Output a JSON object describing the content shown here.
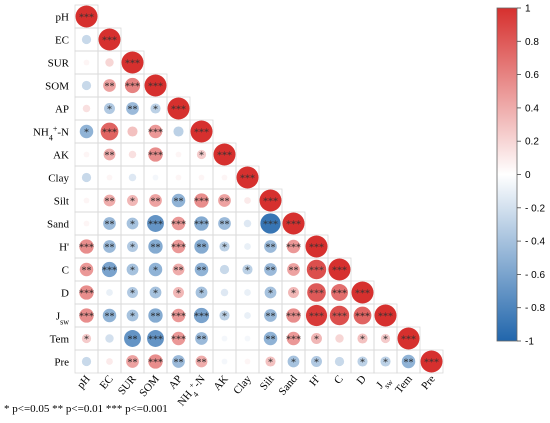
{
  "chart_data": {
    "type": "heatmap",
    "variables": [
      "pH",
      "EC",
      "SUR",
      "SOM",
      "AP",
      "NH4+-N",
      "AK",
      "Clay",
      "Silt",
      "Sand",
      "H'",
      "C",
      "D",
      "Jsw",
      "Tem",
      "Pre"
    ],
    "row_labels": [
      {
        "base": "pH",
        "sup": "",
        "sub": ""
      },
      {
        "base": "EC",
        "sup": "",
        "sub": ""
      },
      {
        "base": "SUR",
        "sup": "",
        "sub": ""
      },
      {
        "base": "SOM",
        "sup": "",
        "sub": ""
      },
      {
        "base": "AP",
        "sup": "",
        "sub": ""
      },
      {
        "base": "NH",
        "sub": "4",
        "sup": "+",
        "tail": "-N"
      },
      {
        "base": "AK",
        "sup": "",
        "sub": ""
      },
      {
        "base": "Clay",
        "sup": "",
        "sub": ""
      },
      {
        "base": "Silt",
        "sup": "",
        "sub": ""
      },
      {
        "base": "Sand",
        "sup": "",
        "sub": ""
      },
      {
        "base": "H'",
        "sup": "",
        "sub": ""
      },
      {
        "base": "C",
        "sup": "",
        "sub": ""
      },
      {
        "base": "D",
        "sup": "",
        "sub": ""
      },
      {
        "base": "J",
        "sub": "sw",
        "sup": ""
      },
      {
        "base": "Tem",
        "sup": "",
        "sub": ""
      },
      {
        "base": "Pre",
        "sup": "",
        "sub": ""
      }
    ],
    "matrix": [
      [
        1.0
      ],
      [
        -0.25,
        1.0
      ],
      [
        0.05,
        0.2,
        1.0
      ],
      [
        -0.25,
        0.45,
        0.6,
        1.0
      ],
      [
        0.15,
        -0.35,
        -0.45,
        -0.3,
        1.0
      ],
      [
        -0.5,
        0.75,
        0.3,
        0.5,
        -0.3,
        1.0
      ],
      [
        0.05,
        0.4,
        0.15,
        0.55,
        0.05,
        0.25,
        1.0
      ],
      [
        -0.25,
        0.05,
        -0.15,
        -0.05,
        0.05,
        0.05,
        0.05,
        1.0
      ],
      [
        0.05,
        0.4,
        0.35,
        0.45,
        -0.5,
        0.55,
        0.45,
        0.1,
        1.0
      ],
      [
        0.05,
        -0.45,
        -0.4,
        -0.7,
        0.5,
        -0.55,
        -0.45,
        -0.15,
        -0.9,
        1.0
      ],
      [
        0.55,
        -0.45,
        -0.35,
        -0.55,
        0.5,
        -0.55,
        -0.3,
        -0.1,
        -0.45,
        0.5,
        1.0
      ],
      [
        0.5,
        -0.6,
        -0.4,
        -0.5,
        0.4,
        -0.5,
        -0.25,
        -0.3,
        -0.45,
        0.45,
        0.85,
        1.0
      ],
      [
        0.55,
        -0.1,
        -0.35,
        -0.4,
        0.35,
        -0.4,
        -0.15,
        -0.1,
        -0.4,
        0.35,
        0.8,
        0.7,
        1.0
      ],
      [
        0.55,
        -0.5,
        -0.4,
        -0.55,
        0.5,
        -0.6,
        -0.3,
        -0.1,
        -0.45,
        0.55,
        0.95,
        0.85,
        0.75,
        1.0
      ],
      [
        0.25,
        -0.2,
        -0.7,
        -0.7,
        0.5,
        -0.45,
        -0.05,
        -0.05,
        -0.5,
        0.5,
        0.35,
        0.2,
        0.3,
        0.25,
        1.0
      ],
      [
        -0.25,
        0.1,
        0.45,
        0.55,
        -0.45,
        0.4,
        -0.05,
        0.05,
        0.3,
        -0.4,
        -0.35,
        -0.25,
        -0.3,
        -0.3,
        -0.5,
        1.0
      ]
    ],
    "significance": [
      [
        "***"
      ],
      [
        "",
        "***"
      ],
      [
        "",
        "",
        "***"
      ],
      [
        "",
        "**",
        "***",
        "***"
      ],
      [
        "",
        "*",
        "**",
        "*",
        "***"
      ],
      [
        "*",
        "***",
        "",
        "***",
        "",
        "***"
      ],
      [
        "",
        "**",
        "",
        "***",
        "",
        "*",
        "***"
      ],
      [
        "",
        "",
        "",
        "",
        "",
        "",
        "",
        "***"
      ],
      [
        "",
        "**",
        "*",
        "**",
        "**",
        "***",
        "**",
        "",
        "***"
      ],
      [
        "",
        "**",
        "*",
        "***",
        "***",
        "***",
        "**",
        "",
        "***",
        "***"
      ],
      [
        "***",
        "**",
        "*",
        "**",
        "***",
        "**",
        "*",
        "",
        "**",
        "***",
        "***"
      ],
      [
        "**",
        "***",
        "*",
        "*",
        "**",
        "**",
        "",
        "*",
        "**",
        "**",
        "***",
        "***"
      ],
      [
        "***",
        "",
        "*",
        "*",
        "*",
        "*",
        "",
        "",
        "*",
        "*",
        "***",
        "***",
        "***"
      ],
      [
        "***",
        "**",
        "*",
        "**",
        "***",
        "***",
        "*",
        "",
        "**",
        "***",
        "***",
        "***",
        "***",
        "***"
      ],
      [
        "*",
        "",
        "**",
        "***",
        "***",
        "**",
        "",
        "",
        "**",
        "***",
        "*",
        "",
        "*",
        "*",
        "***"
      ],
      [
        "",
        "",
        "**",
        "***",
        "**",
        "**",
        "",
        "",
        "*",
        "*",
        "*",
        "",
        "*",
        "*",
        "**",
        "***"
      ]
    ],
    "colorbar": {
      "min": -1,
      "max": 1,
      "ticks": [
        "1",
        "0.8",
        "0.6",
        "0.4",
        "0.2",
        "0",
        "- 0.2",
        "- 0.4",
        "- 0.6",
        "- 0.8",
        "-1"
      ],
      "colors": [
        "#2166ac",
        "#ffffff",
        "#d6302e"
      ]
    },
    "legend_note": "* p<=0.05  ** p<=0.01  *** p<=0.001"
  }
}
